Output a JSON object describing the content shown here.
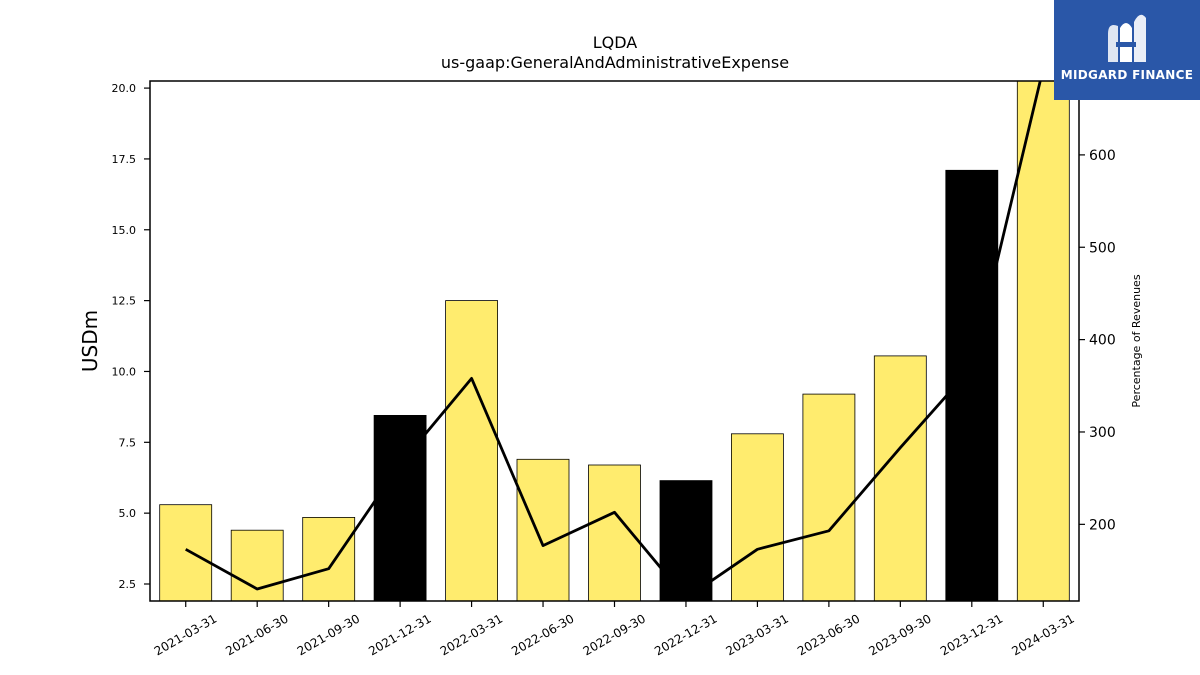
{
  "chart_data": {
    "type": "bar",
    "title": "LQDA",
    "subtitle": "us-gaap:GeneralAndAdministrativeExpense",
    "ylabel": "USDm",
    "y2label": "Percentage of Revenues",
    "ylim": [
      1.9,
      20.25
    ],
    "y2lim": [
      117,
      680
    ],
    "yticks": [
      "2.5",
      "5.0",
      "7.5",
      "10.0",
      "12.5",
      "15.0",
      "17.5",
      "20.0"
    ],
    "y2ticks": [
      "200",
      "300",
      "400",
      "500",
      "600"
    ],
    "categories": [
      "2021-03-31",
      "2021-06-30",
      "2021-09-30",
      "2021-12-31",
      "2022-03-31",
      "2022-06-30",
      "2022-09-30",
      "2022-12-31",
      "2023-03-31",
      "2023-06-30",
      "2023-09-30",
      "2023-12-31",
      "2024-03-31"
    ],
    "series": [
      {
        "type": "bar",
        "axis": "left",
        "values": [
          5.3,
          4.4,
          4.85,
          8.45,
          12.5,
          6.9,
          6.7,
          6.15,
          7.8,
          9.2,
          10.55,
          17.1,
          20.3
        ],
        "colors": [
          "#ffec6e",
          "#ffec6e",
          "#ffec6e",
          "#000000",
          "#ffec6e",
          "#ffec6e",
          "#ffec6e",
          "#000000",
          "#ffec6e",
          "#ffec6e",
          "#ffec6e",
          "#000000",
          "#ffec6e"
        ]
      },
      {
        "type": "line",
        "axis": "right",
        "values": [
          173,
          130,
          152,
          265,
          358,
          177,
          213,
          120,
          173,
          193,
          283,
          370,
          694
        ],
        "color": "#000000"
      }
    ],
    "grid": false,
    "legend": "none"
  },
  "logo": {
    "text": "MIDGARD FINANCE",
    "background": "#2a57a8",
    "icon": "midgard-logo-icon"
  }
}
